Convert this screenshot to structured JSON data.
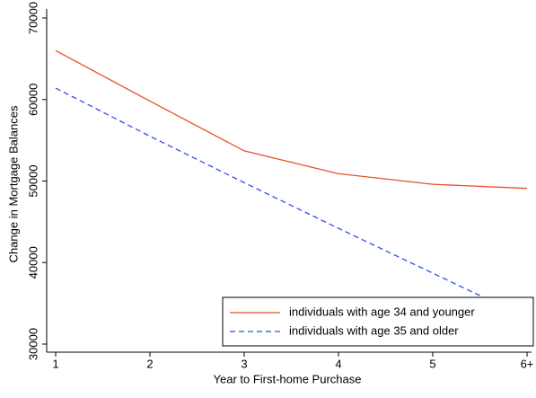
{
  "chart_data": {
    "type": "line",
    "x_label": "Year to First-home Purchase",
    "y_label": "Change in Mortgage Balances",
    "categories": [
      "1",
      "2",
      "3",
      "4",
      "5",
      "6+"
    ],
    "series": [
      {
        "name": "individuals with age 34 and younger",
        "color": "#e8502a",
        "dash": false,
        "values": [
          66000,
          59800,
          53700,
          50900,
          49600,
          49100
        ]
      },
      {
        "name": "individuals with age 35 and older",
        "color": "#2a50e8",
        "dash": true,
        "values": [
          61400,
          55500,
          49800,
          44200,
          38700,
          33200
        ]
      }
    ],
    "ylim": [
      30000,
      70000
    ],
    "yticks": [
      30000,
      40000,
      50000,
      60000,
      70000
    ],
    "legend": "lower right"
  }
}
